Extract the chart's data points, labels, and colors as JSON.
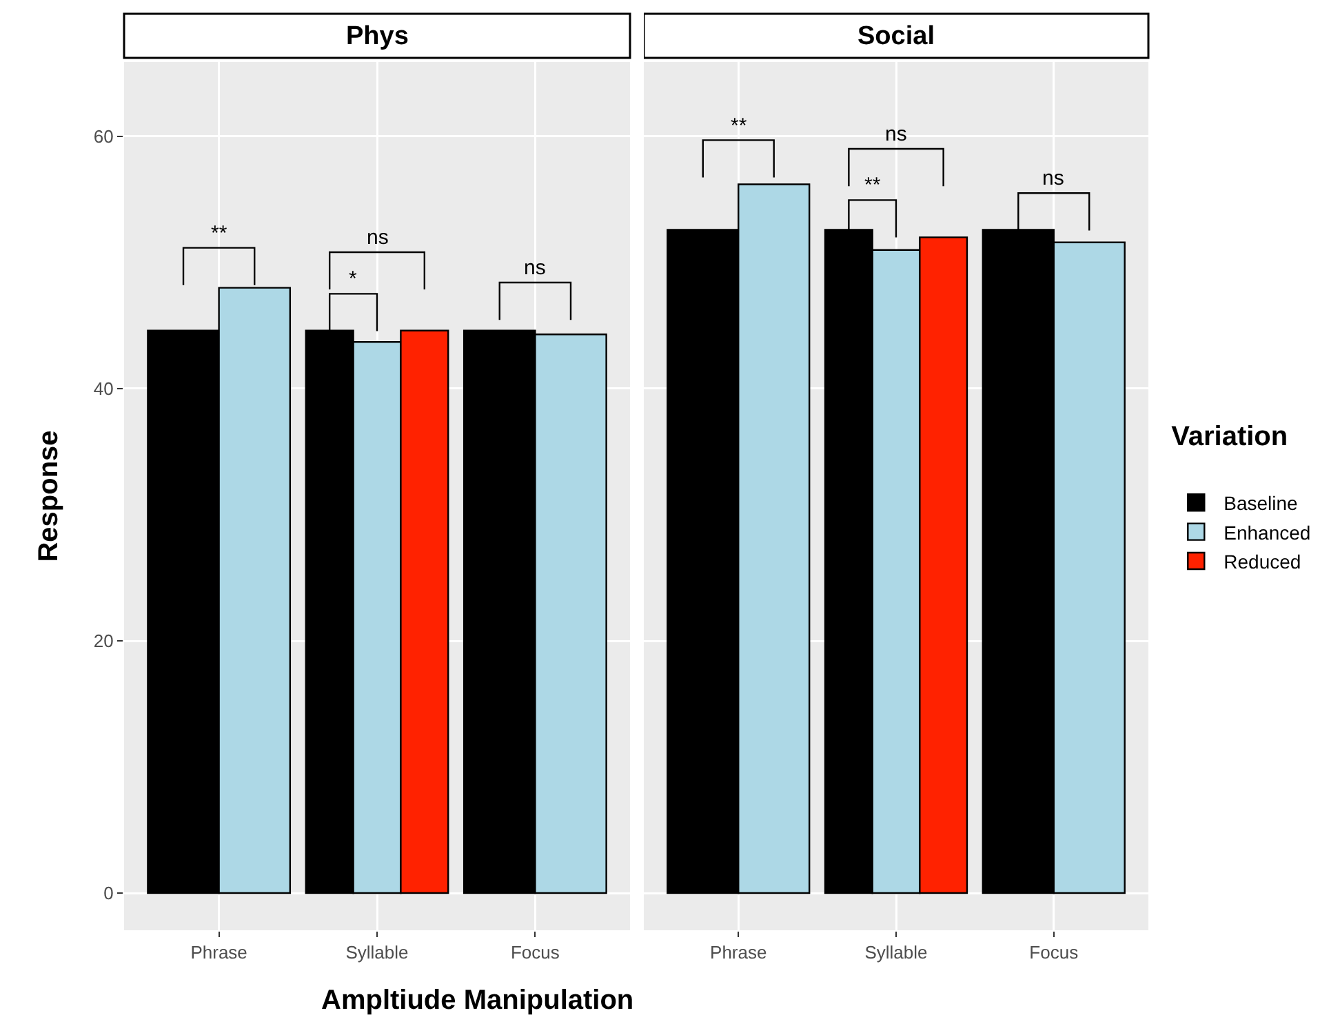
{
  "chart_data": [
    {
      "type": "bar",
      "title": "Phys",
      "xlabel": "Ampltiude Manipulation",
      "ylabel": "Response",
      "categories": [
        "Phrase",
        "Syllable",
        "Focus"
      ],
      "series": [
        {
          "color": "#000000",
          "values": [
            44.6,
            44.6,
            44.6
          ]
        },
        {
          "color": "#add8e6",
          "values": [
            48.0,
            43.7,
            44.3
          ]
        },
        {
          "color": "#ff2200",
          "values": [
            null,
            44.6,
            null
          ]
        }
      ],
      "ylim": [
        -2.95,
        65.9
      ],
      "yticks": [
        0,
        20,
        40,
        60
      ],
      "grid": true,
      "annotations": [
        "**",
        "*",
        "ns",
        "ns"
      ]
    },
    {
      "type": "bar",
      "title": "Social",
      "legend_title": "Variation",
      "legend": "right",
      "tick_labels": "x",
      "categories": [
        "Phrase",
        "Syllable",
        "Focus"
      ],
      "series": [
        {
          "name": "Baseline",
          "color": "#000000",
          "values": [
            52.6,
            52.6,
            52.6
          ]
        },
        {
          "name": "Enhanced",
          "color": "#add8e6",
          "values": [
            56.2,
            51.0,
            51.6
          ]
        },
        {
          "name": "Reduced",
          "color": "#ff2200",
          "values": [
            null,
            52.0,
            null
          ]
        }
      ],
      "ylim": [
        -2.95,
        65.9
      ],
      "yticks": [
        0,
        20,
        40,
        60
      ],
      "grid": true,
      "annotations": [
        "**",
        "**",
        "ns",
        "ns"
      ]
    }
  ]
}
